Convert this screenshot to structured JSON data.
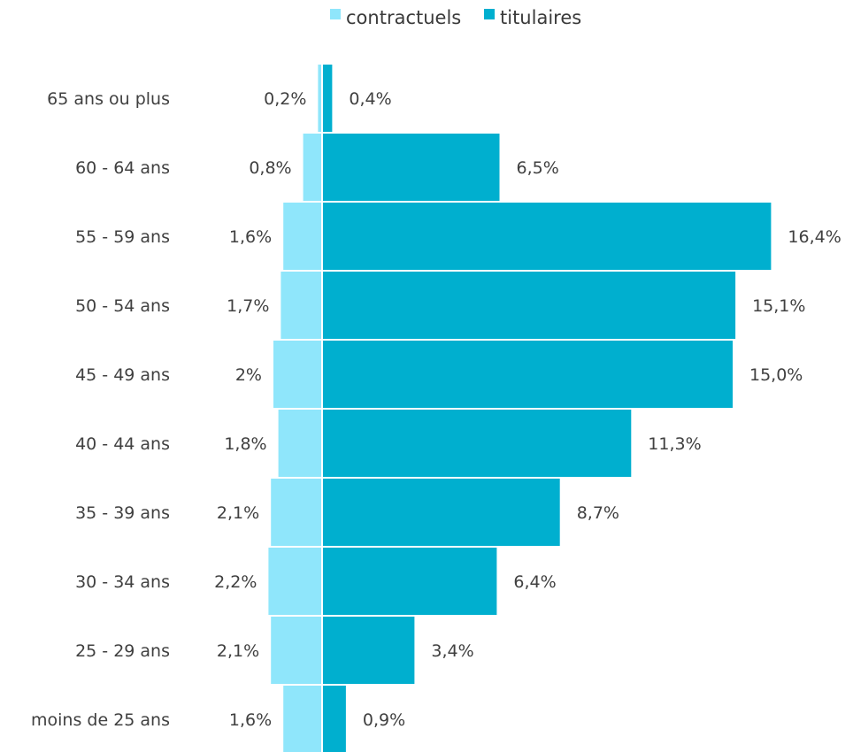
{
  "chart_data": {
    "type": "bar",
    "orientation": "horizontal",
    "layout": "population-pyramid",
    "categories": [
      "65 ans ou plus",
      "60 - 64 ans",
      "55 - 59 ans",
      "50 - 54 ans",
      "45 - 49 ans",
      "40 - 44 ans",
      "35 - 39 ans",
      "30 - 34 ans",
      "25 - 29 ans",
      "moins de 25 ans"
    ],
    "series": [
      {
        "name": "contractuels",
        "color": "#8fe6fb",
        "values": [
          0.2,
          0.8,
          1.6,
          1.7,
          2.0,
          1.8,
          2.1,
          2.2,
          2.1,
          1.6
        ],
        "labels": [
          "0,2%",
          "0,8%",
          "1,6%",
          "1,7%",
          "2%",
          "1,8%",
          "2,1%",
          "2,2%",
          "2,1%",
          "1,6%"
        ]
      },
      {
        "name": "titulaires",
        "color": "#00afcf",
        "values": [
          0.4,
          6.5,
          16.4,
          15.1,
          15.0,
          11.3,
          8.7,
          6.4,
          3.4,
          0.9
        ],
        "labels": [
          "0,4%",
          "6,5%",
          "16,4%",
          "15,1%",
          "15,0%",
          "11,3%",
          "8,7%",
          "6,4%",
          "3,4%",
          "0,9%"
        ]
      }
    ],
    "legend_position": "top",
    "grid": false,
    "xlabel": "",
    "ylabel": ""
  }
}
